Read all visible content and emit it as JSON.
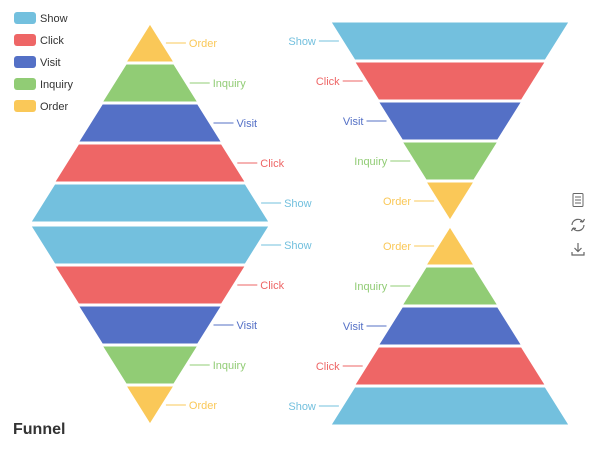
{
  "title": "Funnel",
  "colors": {
    "Show": "#73c0de",
    "Click": "#ee6666",
    "Visit": "#5470c6",
    "Inquiry": "#91cc75",
    "Order": "#fac858"
  },
  "legend": {
    "position": "top-left",
    "items": [
      "Show",
      "Click",
      "Visit",
      "Inquiry",
      "Order"
    ]
  },
  "toolbox": {
    "position": "right",
    "icons": [
      "data-view-icon",
      "restore-icon",
      "save-image-icon"
    ]
  },
  "chart_data": [
    {
      "type": "funnel",
      "name": "left-upper",
      "sort": "ascending",
      "label_position": "right",
      "categories": [
        "Order",
        "Inquiry",
        "Visit",
        "Click",
        "Show"
      ],
      "values": [
        20,
        40,
        60,
        80,
        100
      ]
    },
    {
      "type": "funnel",
      "name": "left-lower",
      "sort": "descending",
      "label_position": "right",
      "categories": [
        "Show",
        "Click",
        "Visit",
        "Inquiry",
        "Order"
      ],
      "values": [
        100,
        80,
        60,
        40,
        20
      ]
    },
    {
      "type": "funnel",
      "name": "right-upper",
      "sort": "descending",
      "label_position": "left",
      "categories": [
        "Show",
        "Click",
        "Visit",
        "Inquiry",
        "Order"
      ],
      "values": [
        100,
        80,
        60,
        40,
        20
      ]
    },
    {
      "type": "funnel",
      "name": "right-lower",
      "sort": "ascending",
      "label_position": "left",
      "categories": [
        "Order",
        "Inquiry",
        "Visit",
        "Click",
        "Show"
      ],
      "values": [
        20,
        40,
        60,
        80,
        100
      ]
    }
  ]
}
